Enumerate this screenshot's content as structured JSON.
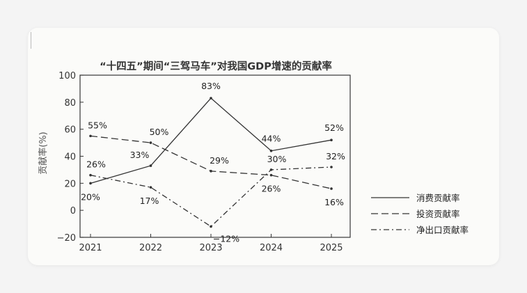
{
  "chart_data": {
    "type": "line",
    "title": "“十四五”期间“三驾马车”对我国GDP增速的贡献率",
    "ylabel": "贡献率(%)",
    "xlabel": "",
    "categories": [
      "2021",
      "2022",
      "2023",
      "2024",
      "2025"
    ],
    "yticks": [
      "100",
      "80",
      "60",
      "40",
      "20",
      "0",
      "−20"
    ],
    "ylim": [
      -20,
      100
    ],
    "grid": false,
    "legend_position": "right",
    "series": [
      {
        "name": "消费贡献率",
        "style": "solid",
        "values": [
          20,
          33,
          83,
          44,
          52
        ],
        "labels": [
          "20%",
          "33%",
          "83%",
          "44%",
          "52%"
        ]
      },
      {
        "name": "投资贡献率",
        "style": "dashed",
        "values": [
          55,
          50,
          29,
          26,
          16
        ],
        "labels": [
          "55%",
          "50%",
          "29%",
          "26%",
          "16%"
        ]
      },
      {
        "name": "净出口贡献率",
        "style": "dashdot",
        "values": [
          26,
          17,
          -12,
          30,
          32
        ],
        "labels": [
          "26%",
          "17%",
          "−12%",
          "30%",
          "32%"
        ]
      }
    ],
    "colors": {
      "line": "#333333",
      "axis": "#333333",
      "frame": "#444444"
    }
  }
}
